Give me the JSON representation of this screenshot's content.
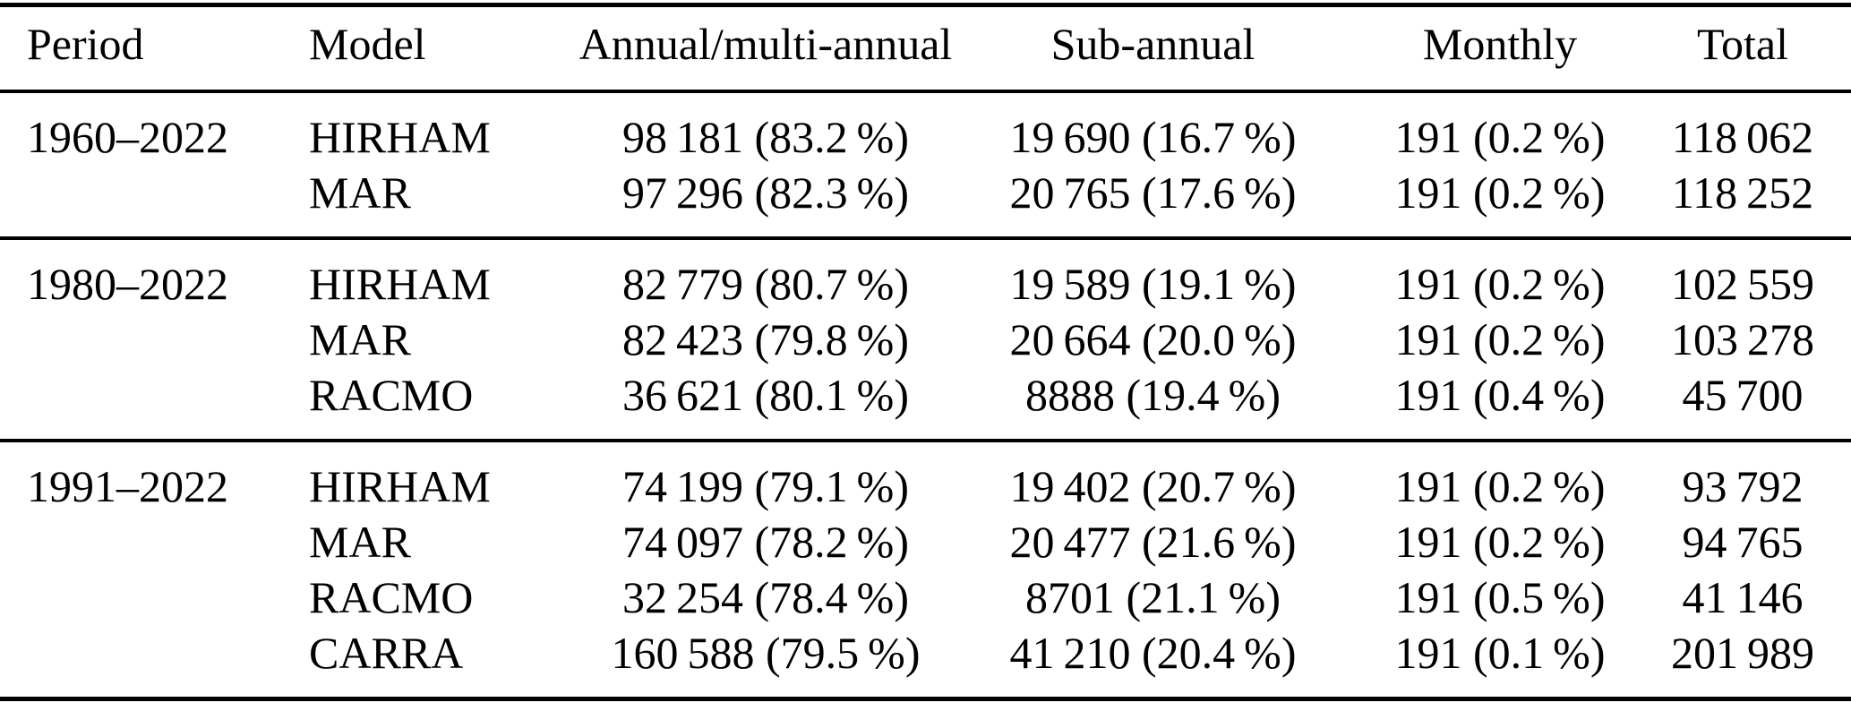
{
  "colors": {
    "text": "#000000",
    "background": "#ffffff",
    "rule": "#000000"
  },
  "table": {
    "columns": [
      {
        "key": "period",
        "label": "Period"
      },
      {
        "key": "model",
        "label": "Model"
      },
      {
        "key": "annual",
        "label": "Annual/multi-annual"
      },
      {
        "key": "sub",
        "label": "Sub-annual"
      },
      {
        "key": "monthly",
        "label": "Monthly"
      },
      {
        "key": "total",
        "label": "Total"
      }
    ],
    "groups": [
      {
        "period": "1960–2022",
        "rows": [
          {
            "model": "HIRHAM",
            "annual": "98 181 (83.2 %)",
            "sub": "19 690 (16.7 %)",
            "monthly": "191 (0.2 %)",
            "total": "118 062"
          },
          {
            "model": "MAR",
            "annual": "97 296 (82.3 %)",
            "sub": "20 765 (17.6 %)",
            "monthly": "191 (0.2 %)",
            "total": "118 252"
          }
        ]
      },
      {
        "period": "1980–2022",
        "rows": [
          {
            "model": "HIRHAM",
            "annual": "82 779 (80.7 %)",
            "sub": "19 589 (19.1 %)",
            "monthly": "191 (0.2 %)",
            "total": "102 559"
          },
          {
            "model": "MAR",
            "annual": "82 423 (79.8 %)",
            "sub": "20 664 (20.0 %)",
            "monthly": "191 (0.2 %)",
            "total": "103 278"
          },
          {
            "model": "RACMO",
            "annual": "36 621 (80.1 %)",
            "sub": "8888 (19.4 %)",
            "monthly": "191 (0.4 %)",
            "total": "45 700"
          }
        ]
      },
      {
        "period": "1991–2022",
        "rows": [
          {
            "model": "HIRHAM",
            "annual": "74 199 (79.1 %)",
            "sub": "19 402 (20.7 %)",
            "monthly": "191 (0.2 %)",
            "total": "93 792"
          },
          {
            "model": "MAR",
            "annual": "74 097 (78.2 %)",
            "sub": "20 477 (21.6 %)",
            "monthly": "191 (0.2 %)",
            "total": "94 765"
          },
          {
            "model": "RACMO",
            "annual": "32 254 (78.4 %)",
            "sub": "8701 (21.1 %)",
            "monthly": "191 (0.5 %)",
            "total": "41 146"
          },
          {
            "model": "CARRA",
            "annual": "160 588 (79.5 %)",
            "sub": "41 210 (20.4 %)",
            "monthly": "191 (0.1 %)",
            "total": "201 989"
          }
        ]
      }
    ]
  }
}
